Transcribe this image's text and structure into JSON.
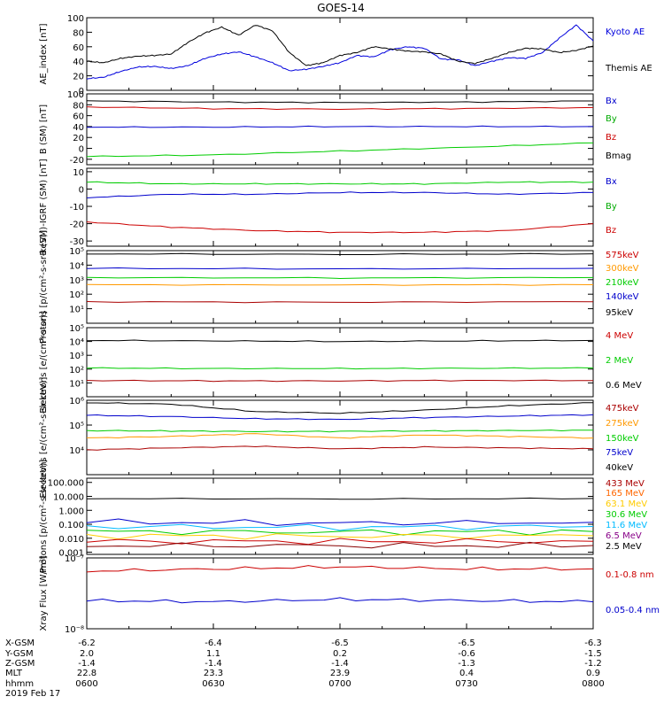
{
  "title": "GOES-14",
  "footer": {
    "ticks": [
      "0600",
      "0630",
      "0700",
      "0730",
      "0800"
    ],
    "rows": [
      {
        "label": "X-GSM",
        "values": [
          "-6.2",
          "-6.4",
          "-6.5",
          "-6.5",
          "-6.3"
        ]
      },
      {
        "label": "Y-GSM",
        "values": [
          "2.0",
          "1.1",
          "0.2",
          "-0.6",
          "-1.5"
        ]
      },
      {
        "label": "Z-GSM",
        "values": [
          "-1.4",
          "-1.4",
          "-1.4",
          "-1.3",
          "-1.2"
        ]
      },
      {
        "label": "MLT",
        "values": [
          "22.8",
          "23.3",
          "23.9",
          "0.4",
          "0.9"
        ]
      },
      {
        "label": "hhmm",
        "values": [
          "0600",
          "0630",
          "0700",
          "0730",
          "0800"
        ]
      }
    ],
    "date": "2019 Feb 17"
  },
  "chart_data": [
    {
      "id": "ae",
      "type": "line",
      "ylabel": "AE_index [nT]",
      "scale": "linear",
      "ylim": [
        0,
        100
      ],
      "yticks": [
        0,
        20,
        40,
        60,
        80,
        100
      ],
      "ytick_labels": [
        "0",
        "20",
        "40",
        "60",
        "80",
        "100"
      ],
      "series": [
        {
          "name": "Kyoto AE",
          "color": "#0000dd",
          "x": [
            0,
            4,
            8,
            12,
            16,
            20,
            24,
            28,
            32,
            36,
            40,
            44,
            48,
            52,
            56,
            60,
            64,
            68,
            72,
            76,
            80,
            84,
            88,
            92,
            96,
            100,
            104,
            108,
            112,
            116,
            120
          ],
          "values": [
            16,
            18,
            26,
            32,
            33,
            30,
            34,
            44,
            50,
            53,
            46,
            38,
            27,
            29,
            33,
            38,
            48,
            46,
            56,
            60,
            58,
            43,
            42,
            34,
            40,
            45,
            44,
            52,
            72,
            90,
            68
          ]
        },
        {
          "name": "Themis AE",
          "color": "#000000",
          "x": [
            0,
            4,
            8,
            12,
            16,
            20,
            24,
            28,
            32,
            36,
            40,
            44,
            48,
            52,
            56,
            60,
            64,
            68,
            72,
            76,
            80,
            84,
            88,
            92,
            96,
            100,
            104,
            108,
            112,
            116,
            120
          ],
          "values": [
            40,
            38,
            44,
            47,
            48,
            50,
            66,
            79,
            87,
            76,
            90,
            82,
            52,
            34,
            38,
            48,
            52,
            60,
            57,
            54,
            53,
            50,
            40,
            37,
            44,
            52,
            58,
            57,
            52,
            55,
            61
          ]
        }
      ]
    },
    {
      "id": "bsm",
      "type": "line",
      "ylabel": "B (SM) [nT]",
      "scale": "linear",
      "ylim": [
        -30,
        100
      ],
      "yticks": [
        -20,
        0,
        20,
        40,
        60,
        80,
        100
      ],
      "ytick_labels": [
        "-20",
        "0",
        "20",
        "40",
        "60",
        "80",
        "100"
      ],
      "series": [
        {
          "name": "Bx",
          "color": "#0000cc",
          "x": [
            0,
            30,
            60,
            90,
            120
          ],
          "values": [
            39,
            39,
            40,
            40,
            40
          ]
        },
        {
          "name": "By",
          "color": "#00cc00",
          "x": [
            0,
            30,
            60,
            90,
            120
          ],
          "values": [
            -15,
            -12,
            -5,
            2,
            10
          ]
        },
        {
          "name": "Bz",
          "color": "#cc0000",
          "x": [
            0,
            30,
            60,
            90,
            120
          ],
          "values": [
            76,
            73,
            72,
            73,
            75
          ]
        },
        {
          "name": "Bmag",
          "color": "#000000",
          "x": [
            0,
            30,
            60,
            90,
            120
          ],
          "values": [
            87,
            85,
            84,
            85,
            87
          ]
        }
      ]
    },
    {
      "id": "bigrf",
      "type": "line",
      "ylabel": "B (SM)-IGRF (SM) [nT]",
      "scale": "linear",
      "ylim": [
        -33,
        12
      ],
      "yticks": [
        -30,
        -20,
        -10,
        0,
        10
      ],
      "ytick_labels": [
        "-30",
        "-20",
        "-10",
        "0",
        "10"
      ],
      "series": [
        {
          "name": "Bx",
          "color": "#0000cc",
          "x": [
            0,
            20,
            40,
            60,
            80,
            100,
            120
          ],
          "values": [
            -5,
            -3,
            -3,
            -2,
            -2,
            -3,
            -2
          ]
        },
        {
          "name": "By",
          "color": "#00cc00",
          "x": [
            0,
            20,
            40,
            60,
            80,
            100,
            120
          ],
          "values": [
            4,
            3,
            3,
            3,
            3,
            4,
            4
          ]
        },
        {
          "name": "Bz",
          "color": "#cc0000",
          "x": [
            0,
            20,
            40,
            60,
            80,
            100,
            120
          ],
          "values": [
            -19,
            -22,
            -24,
            -25,
            -25,
            -24,
            -20
          ]
        }
      ]
    },
    {
      "id": "protons_lo",
      "type": "line",
      "ylabel": "Protons [p/(cm²-s-sr-keV)]",
      "scale": "log",
      "ylim": [
        1,
        100000
      ],
      "yticks": [
        10,
        100,
        1000,
        10000,
        100000
      ],
      "ytick_labels": [
        "10¹",
        "10²",
        "10³",
        "10⁴",
        "10⁵"
      ],
      "series": [
        {
          "name": "575keV",
          "color": "#000000",
          "x": [
            0,
            60,
            120
          ],
          "values": [
            60000,
            55000,
            60000
          ]
        },
        {
          "name": "300keV",
          "color": "#0000cc",
          "x": [
            0,
            60,
            120
          ],
          "values": [
            6000,
            5500,
            6000
          ]
        },
        {
          "name": "210keV",
          "color": "#00cc00",
          "x": [
            0,
            60,
            120
          ],
          "values": [
            1400,
            1300,
            1400
          ]
        },
        {
          "name": "140keV",
          "color": "#ff9900",
          "x": [
            0,
            60,
            120
          ],
          "values": [
            450,
            430,
            450
          ]
        },
        {
          "name": "95keV",
          "color": "#aa0000",
          "x": [
            0,
            60,
            120
          ],
          "values": [
            30,
            28,
            30
          ]
        }
      ]
    },
    {
      "id": "electrons_mev",
      "type": "line",
      "ylabel": "Electrons [e/(cm²-s-sr)]",
      "scale": "log",
      "ylim": [
        1,
        100000
      ],
      "yticks": [
        10,
        100,
        1000,
        10000,
        100000
      ],
      "ytick_labels": [
        "10¹",
        "10²",
        "10³",
        "10⁴",
        "10⁵"
      ],
      "series": [
        {
          "name": "4 MeV",
          "color": "#000000",
          "x": [
            0,
            30,
            60,
            90,
            120
          ],
          "values": [
            12000,
            11000,
            10000,
            11000,
            12000
          ]
        },
        {
          "name": "2 MeV",
          "color": "#00cc00",
          "x": [
            0,
            30,
            60,
            90,
            120
          ],
          "values": [
            120,
            110,
            110,
            115,
            120
          ]
        },
        {
          "name": "0.6 MeV",
          "color": "#aa0000",
          "x": [
            0,
            30,
            60,
            90,
            120
          ],
          "values": [
            15,
            14,
            14,
            15,
            15
          ]
        }
      ]
    },
    {
      "id": "electrons_kev",
      "type": "line",
      "ylabel": "Electrons [e/(cm²-s-sr-keV)]",
      "scale": "log",
      "ylim": [
        1000,
        1000000
      ],
      "yticks": [
        10000,
        100000,
        1000000
      ],
      "ytick_labels": [
        "10⁴",
        "10⁵",
        "10⁶"
      ],
      "series": [
        {
          "name": "475keV",
          "color": "#000000",
          "x": [
            0,
            20,
            40,
            60,
            80,
            100,
            120
          ],
          "values": [
            800000,
            700000,
            350000,
            300000,
            400000,
            600000,
            800000
          ]
        },
        {
          "name": "275keV",
          "color": "#0000cc",
          "x": [
            0,
            20,
            40,
            60,
            80,
            100,
            120
          ],
          "values": [
            250000,
            220000,
            180000,
            170000,
            200000,
            230000,
            260000
          ]
        },
        {
          "name": "150keV",
          "color": "#00cc00",
          "x": [
            0,
            20,
            40,
            60,
            80,
            100,
            120
          ],
          "values": [
            60000,
            58000,
            55000,
            56000,
            58000,
            60000,
            62000
          ]
        },
        {
          "name": "75keV",
          "color": "#ff9900",
          "x": [
            0,
            20,
            40,
            60,
            80,
            100,
            120
          ],
          "values": [
            30000,
            35000,
            45000,
            30000,
            40000,
            35000,
            30000
          ]
        },
        {
          "name": "40keV",
          "color": "#aa0000",
          "x": [
            0,
            20,
            40,
            60,
            80,
            100,
            120
          ],
          "values": [
            10000,
            12000,
            14000,
            11000,
            13000,
            12000,
            11000
          ]
        }
      ]
    },
    {
      "id": "protons_hi",
      "type": "line",
      "ylabel": "Protons [p/(cm²-s-sr-keV)]",
      "scale": "log",
      "ylim": [
        0.0007,
        200
      ],
      "yticks": [
        0.001,
        0.01,
        0.1,
        1,
        10,
        100
      ],
      "ytick_labels": [
        "0.001",
        "0.010",
        "0.100",
        "1.000",
        "10.000",
        "100.000"
      ],
      "series": [
        {
          "name": "433 MeV",
          "color": "#000000",
          "x": [
            0,
            60,
            120
          ],
          "values": [
            7,
            6.5,
            7
          ]
        },
        {
          "name": "165 MeV",
          "color": "#0000cc",
          "x": [
            0,
            60,
            120
          ],
          "values": [
            0.15,
            0.12,
            0.14
          ]
        },
        {
          "name": "63.1 MeV",
          "color": "#00bbff",
          "x": [
            0,
            60,
            120
          ],
          "values": [
            0.07,
            0.06,
            0.07
          ]
        },
        {
          "name": "30.6 MeV",
          "color": "#00cc00",
          "x": [
            0,
            60,
            120
          ],
          "values": [
            0.03,
            0.028,
            0.03
          ]
        },
        {
          "name": "11.6 MeV",
          "color": "#ffcc00",
          "x": [
            0,
            60,
            120
          ],
          "values": [
            0.015,
            0.014,
            0.015
          ]
        },
        {
          "name": "6.5 MeV",
          "color": "#cc0000",
          "x": [
            0,
            60,
            120
          ],
          "values": [
            0.006,
            0.006,
            0.006
          ]
        },
        {
          "name": "2.5 MeV",
          "color": "#880000",
          "x": [
            0,
            60,
            120
          ],
          "values": [
            0.003,
            0.003,
            0.003
          ]
        }
      ]
    },
    {
      "id": "xray",
      "type": "line",
      "ylabel": "Xray Flux [W/m²]",
      "scale": "log",
      "ylim": [
        1e-08,
        1e-07
      ],
      "yticks": [
        1e-08,
        1e-07
      ],
      "ytick_labels": [
        "10⁻⁸",
        "10⁻⁷"
      ],
      "series": [
        {
          "name": "0.1-0.8 nm",
          "color": "#cc0000",
          "x": [
            0,
            30,
            60,
            90,
            120
          ],
          "values": [
            6.5e-08,
            7e-08,
            7.5e-08,
            7e-08,
            7e-08
          ]
        },
        {
          "name": "0.05-0.4 nm",
          "color": "#0000cc",
          "x": [
            0,
            30,
            60,
            90,
            120
          ],
          "values": [
            2.5e-08,
            2.4e-08,
            2.6e-08,
            2.5e-08,
            2.4e-08
          ]
        }
      ]
    }
  ]
}
